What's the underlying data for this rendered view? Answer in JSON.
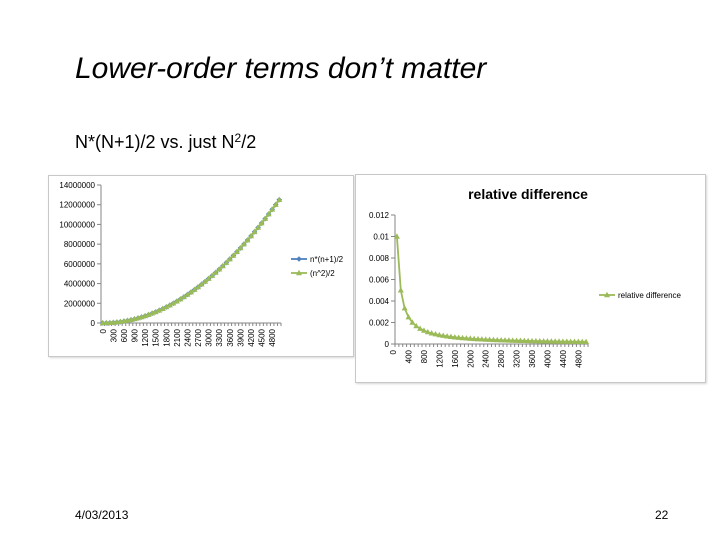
{
  "slide": {
    "title": "Lower-order terms don’t matter",
    "subtitle_prefix": "N*(N+1)/2 vs. just N",
    "subtitle_sup": "2",
    "subtitle_suffix": "/2",
    "date": "4/03/2013",
    "page_number": "22"
  },
  "chart_data": [
    {
      "type": "line",
      "title": "",
      "xlabel": "",
      "ylabel": "",
      "x_start": 0,
      "x_step": 100,
      "x_count": 51,
      "x_tick_labels": [
        "0",
        "300",
        "600",
        "900",
        "1200",
        "1500",
        "1800",
        "2100",
        "2400",
        "2700",
        "3000",
        "3300",
        "3600",
        "3900",
        "4200",
        "4500",
        "4800"
      ],
      "y_tick_labels": [
        "0",
        "2000000",
        "4000000",
        "6000000",
        "8000000",
        "10000000",
        "12000000",
        "14000000"
      ],
      "ylim": [
        0,
        14000000
      ],
      "legend_position": "right",
      "series": [
        {
          "name": "n*(n+1)/2",
          "formula": "n*(n+1)/2",
          "color": "#4f81bd",
          "marker": "diamond"
        },
        {
          "name": "(n^2)/2",
          "formula": "n*n/2",
          "color": "#9bbb59",
          "marker": "triangle"
        }
      ]
    },
    {
      "type": "line",
      "title": "relative difference",
      "xlabel": "",
      "ylabel": "",
      "x_start": 100,
      "x_step": 100,
      "x_count": 50,
      "x_tick_labels": [
        "0",
        "400",
        "800",
        "1200",
        "1600",
        "2000",
        "2400",
        "2800",
        "3200",
        "3600",
        "4000",
        "4400",
        "4800"
      ],
      "y_tick_labels": [
        "0",
        "0.002",
        "0.004",
        "0.006",
        "0.008",
        "0.01",
        "0.012"
      ],
      "ylim": [
        0,
        0.012
      ],
      "legend_position": "right",
      "series": [
        {
          "name": "relative difference",
          "formula": "1/n",
          "color": "#9bbb59",
          "marker": "triangle"
        }
      ]
    }
  ]
}
